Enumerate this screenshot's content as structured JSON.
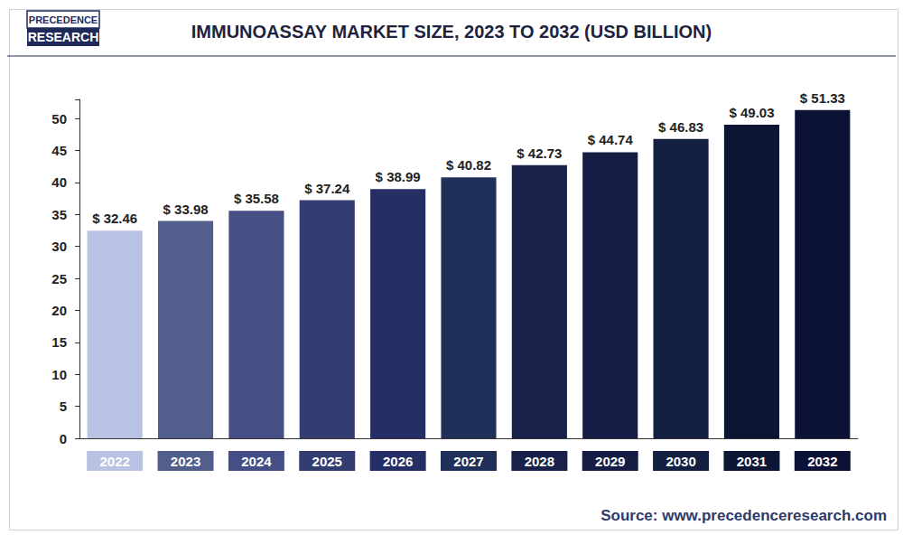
{
  "chart_data": {
    "type": "bar",
    "title": "IMMUNOASSAY MARKET SIZE, 2023 TO 2032 (USD BILLION)",
    "logo": [
      "PRECEDENCE",
      "RESEARCH"
    ],
    "source": "Source: www.precedenceresearch.com",
    "categories": [
      "2022",
      "2023",
      "2024",
      "2025",
      "2026",
      "2027",
      "2028",
      "2029",
      "2030",
      "2031",
      "2032"
    ],
    "values": [
      32.46,
      33.98,
      35.58,
      37.24,
      38.99,
      40.82,
      42.73,
      44.74,
      46.83,
      49.03,
      51.33
    ],
    "value_labels": [
      "$ 32.46",
      "$ 33.98",
      "$ 35.58",
      "$ 37.24",
      "$ 38.99",
      "$ 40.82",
      "$ 42.73",
      "$ 44.74",
      "$ 46.83",
      "$ 49.03",
      "$ 51.33"
    ],
    "colors": [
      "#b8c3e3",
      "#525e8c",
      "#454f86",
      "#333d72",
      "#262e66",
      "#1f3059",
      "#17214a",
      "#151d45",
      "#142042",
      "#0d1535",
      "#0b1236"
    ],
    "ylim": [
      0,
      53
    ],
    "yticks": [
      0,
      5,
      10,
      15,
      20,
      25,
      30,
      35,
      40,
      45,
      50
    ],
    "grid": false,
    "data_labels": true
  }
}
